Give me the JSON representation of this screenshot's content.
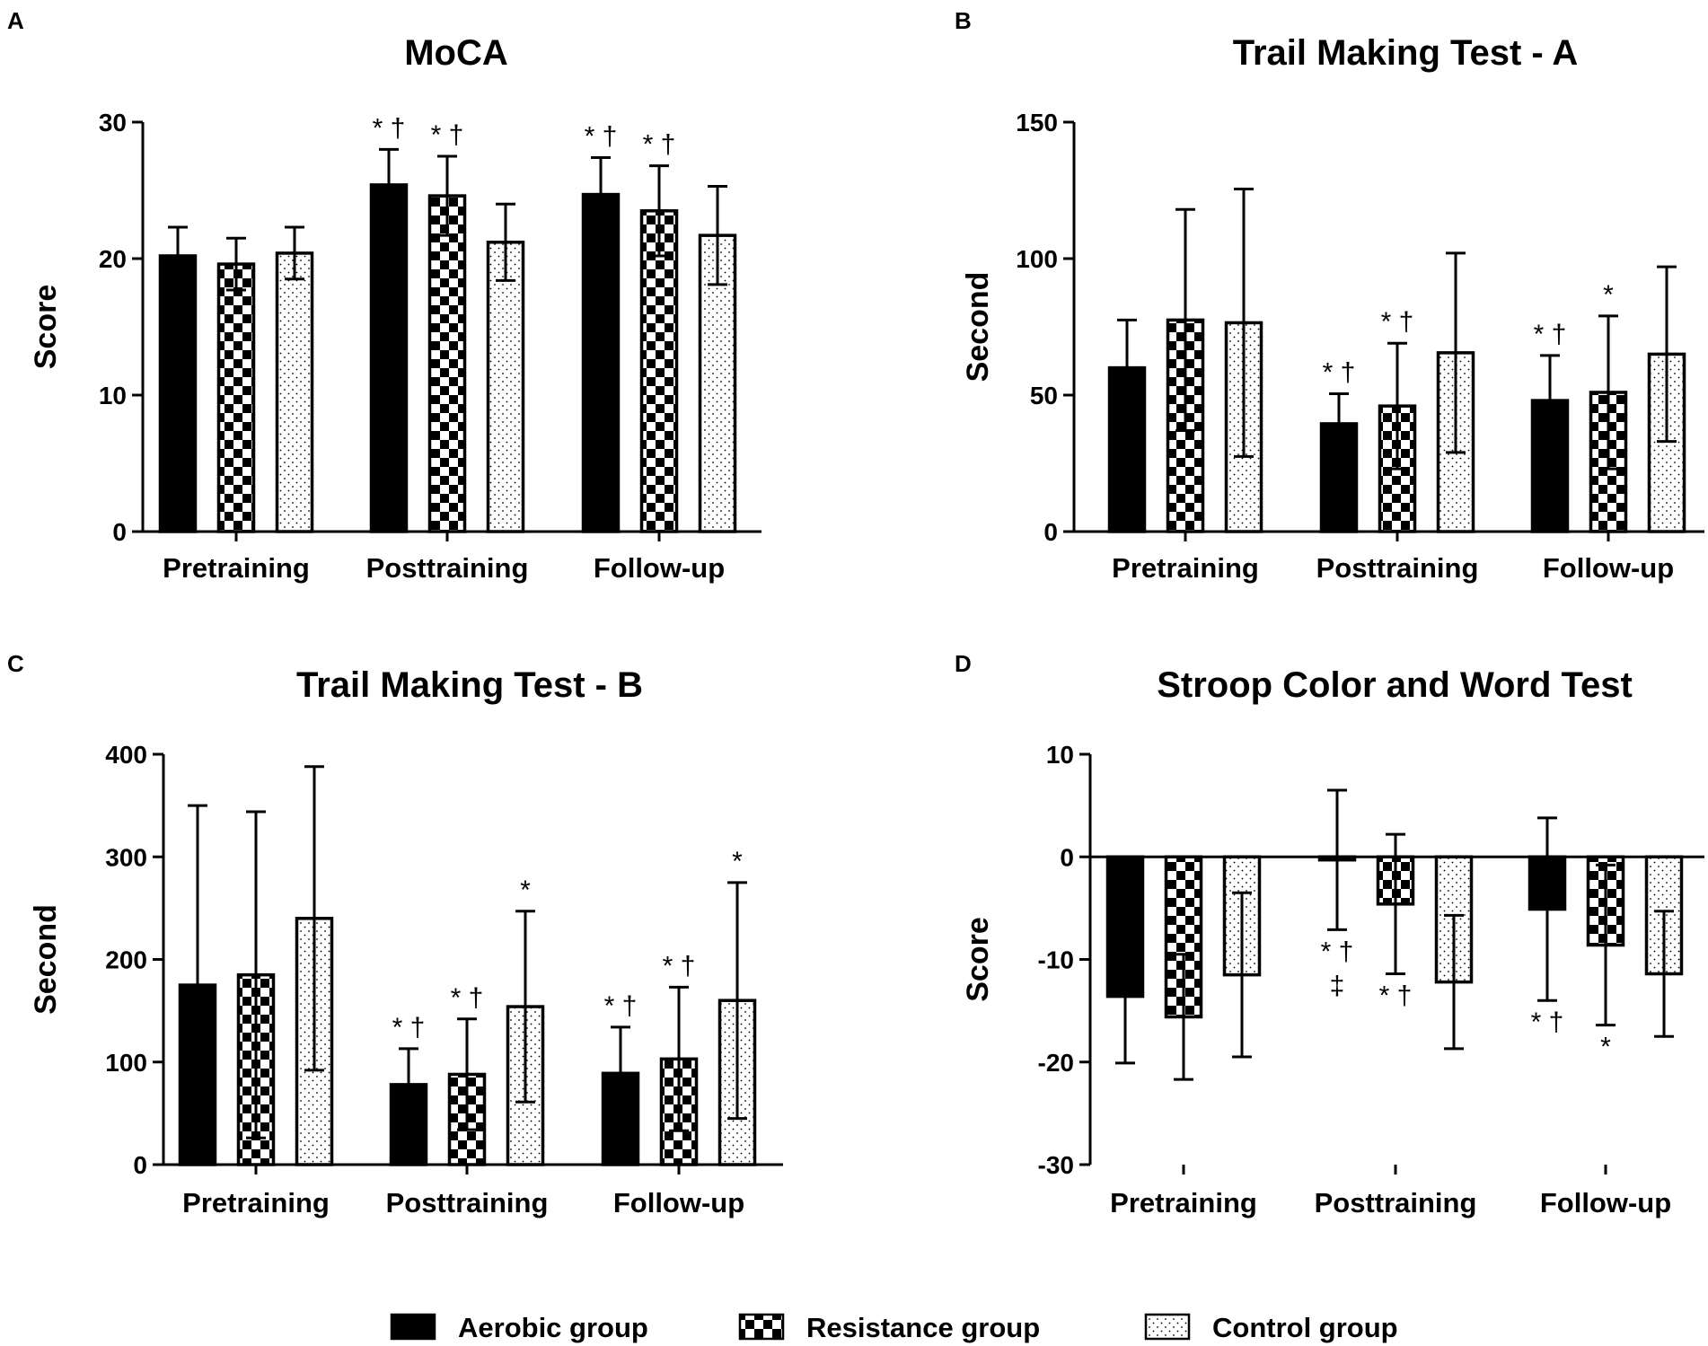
{
  "legend": [
    {
      "key": "aerobic",
      "label": "Aerobic group",
      "pattern": "solid"
    },
    {
      "key": "resistance",
      "label": "Resistance group",
      "pattern": "checker"
    },
    {
      "key": "control",
      "label": "Control group",
      "pattern": "dots"
    }
  ],
  "chart_data": [
    {
      "panel": "A",
      "type": "bar",
      "title": "MoCA",
      "xlabel": "",
      "ylabel": "Score",
      "ylim": [
        0,
        30
      ],
      "yticks": [
        0,
        10,
        20,
        30
      ],
      "categories": [
        "Pretraining",
        "Posttraining",
        "Follow-up"
      ],
      "series": [
        {
          "name": "Aerobic group",
          "values": [
            20.2,
            25.4,
            24.7
          ],
          "err": [
            2.1,
            2.6,
            2.7
          ],
          "annot": [
            "",
            "* †",
            "* †"
          ],
          "annot_pos": [
            "",
            "above",
            "above"
          ]
        },
        {
          "name": "Resistance group",
          "values": [
            19.6,
            24.6,
            23.5
          ],
          "err": [
            1.9,
            2.9,
            3.3
          ],
          "annot": [
            "",
            "* †",
            "* †"
          ],
          "annot_pos": [
            "",
            "above",
            "above"
          ]
        },
        {
          "name": "Control group",
          "values": [
            20.4,
            21.2,
            21.7
          ],
          "err": [
            1.9,
            2.8,
            3.6
          ],
          "annot": [
            "",
            "",
            ""
          ],
          "annot_pos": [
            "",
            "",
            ""
          ]
        }
      ]
    },
    {
      "panel": "B",
      "type": "bar",
      "title": "Trail Making Test - A",
      "xlabel": "",
      "ylabel": "Second",
      "ylim": [
        0,
        150
      ],
      "yticks": [
        0,
        50,
        100,
        150
      ],
      "categories": [
        "Pretraining",
        "Posttraining",
        "Follow-up"
      ],
      "series": [
        {
          "name": "Aerobic group",
          "values": [
            60,
            39.5,
            48
          ],
          "err": [
            17.5,
            11,
            16.5
          ],
          "annot": [
            "",
            "* †",
            "* †"
          ],
          "annot_pos": [
            "",
            "above",
            "above"
          ]
        },
        {
          "name": "Resistance group",
          "values": [
            77.5,
            46,
            51
          ],
          "err": [
            40.5,
            23,
            28
          ],
          "annot": [
            "",
            "* †",
            "*"
          ],
          "annot_pos": [
            "",
            "above",
            "above"
          ]
        },
        {
          "name": "Control group",
          "values": [
            76.5,
            65.5,
            65
          ],
          "err": [
            49,
            36.5,
            32
          ],
          "annot": [
            "",
            "",
            ""
          ],
          "annot_pos": [
            "",
            "",
            ""
          ]
        }
      ]
    },
    {
      "panel": "C",
      "type": "bar",
      "title": "Trail Making Test - B",
      "xlabel": "",
      "ylabel": "Second",
      "ylim": [
        0,
        400
      ],
      "yticks": [
        0,
        100,
        200,
        300,
        400
      ],
      "categories": [
        "Pretraining",
        "Posttraining",
        "Follow-up"
      ],
      "series": [
        {
          "name": "Aerobic group",
          "values": [
            175,
            78,
            89
          ],
          "err": [
            175,
            35,
            45
          ],
          "annot": [
            "",
            "* †",
            "* †"
          ],
          "annot_pos": [
            "",
            "above",
            "above"
          ]
        },
        {
          "name": "Resistance group",
          "values": [
            185,
            88,
            103
          ],
          "err": [
            159,
            54,
            70
          ],
          "annot": [
            "",
            "* †",
            "* †"
          ],
          "annot_pos": [
            "",
            "above",
            "above"
          ]
        },
        {
          "name": "Control group",
          "values": [
            240,
            154,
            160
          ],
          "err": [
            148,
            93,
            115
          ],
          "annot": [
            "",
            "*",
            "*"
          ],
          "annot_pos": [
            "",
            "above",
            "above"
          ]
        }
      ]
    },
    {
      "panel": "D",
      "type": "bar",
      "title": "Stroop Color and Word Test",
      "xlabel": "",
      "ylabel": "Score",
      "ylim": [
        -30,
        10
      ],
      "yticks": [
        -30,
        -20,
        -10,
        0,
        10
      ],
      "categories": [
        "Pretraining",
        "Posttraining",
        "Follow-up"
      ],
      "series": [
        {
          "name": "Aerobic group",
          "values": [
            -13.6,
            -0.3,
            -5.1
          ],
          "err": [
            6.5,
            6.8,
            8.9
          ],
          "annot": [
            "",
            "* †|‡",
            "* †"
          ],
          "annot_pos": [
            "",
            "below",
            "below"
          ]
        },
        {
          "name": "Resistance group",
          "values": [
            -15.6,
            -4.6,
            -8.6
          ],
          "err": [
            6.1,
            6.8,
            7.8
          ],
          "annot": [
            "",
            "* †",
            "*"
          ],
          "annot_pos": [
            "",
            "below",
            "below"
          ]
        },
        {
          "name": "Control group",
          "values": [
            -11.5,
            -12.2,
            -11.4
          ],
          "err": [
            8,
            6.5,
            6.1
          ],
          "annot": [
            "",
            "",
            ""
          ],
          "annot_pos": [
            "",
            "",
            ""
          ]
        }
      ]
    }
  ]
}
